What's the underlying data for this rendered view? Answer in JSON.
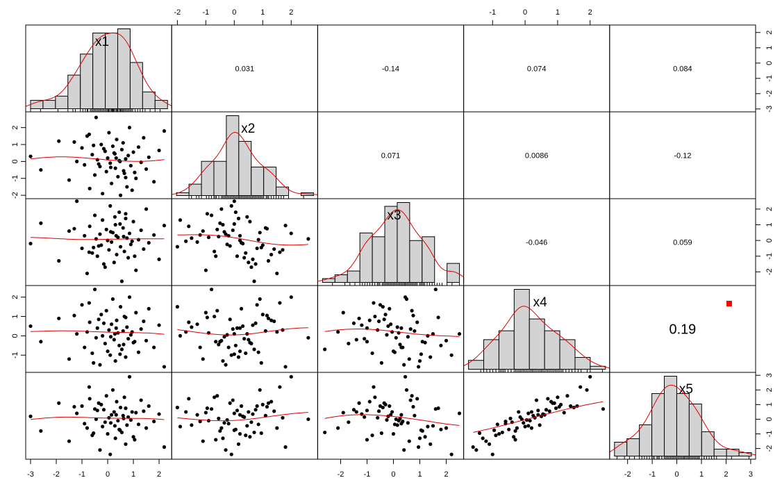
{
  "chart_data": {
    "type": "scatter-matrix",
    "title": "",
    "variables": [
      "x1",
      "x2",
      "x3",
      "x4",
      "x5"
    ],
    "axis_ranges": {
      "x1": [
        -3.19,
        2.49
      ],
      "x2": [
        -2.2,
        2.93
      ],
      "x3": [
        -2.87,
        2.66
      ],
      "x4": [
        -1.89,
        2.6
      ],
      "x5": [
        -2.73,
        3.2
      ]
    },
    "axis_ticks": {
      "x1": [
        "-3",
        "-2",
        "-1",
        "0",
        "1",
        "2"
      ],
      "x2": [
        "-2",
        "-1",
        "0",
        "1",
        "2"
      ],
      "x3": [
        "-2",
        "-1",
        "0",
        "1",
        "2"
      ],
      "x4": [
        "-1",
        "0",
        "1",
        "2"
      ],
      "x5": [
        "-2",
        "-1",
        "0",
        "1",
        "2",
        "3"
      ]
    },
    "histograms": {
      "x1": {
        "breaks_start": -3,
        "bin_width": 0.5,
        "counts": [
          2,
          2,
          3,
          8,
          13,
          18,
          18,
          19,
          11,
          4,
          2
        ]
      },
      "x2": {
        "breaks_start": -2.5,
        "bin_width": 0.5,
        "counts": [
          1,
          4,
          12,
          12,
          28,
          19,
          10,
          10,
          3,
          0,
          1
        ]
      },
      "x3": {
        "breaks_start": -3,
        "bin_width": 0.5,
        "counts": [
          1,
          2,
          3,
          13,
          12,
          20,
          21,
          11,
          12,
          0,
          5
        ]
      },
      "x4": {
        "breaks_start": -2,
        "bin_width": 0.5,
        "counts": [
          3,
          10,
          13,
          27,
          17,
          13,
          10,
          4,
          1
        ]
      },
      "x5": {
        "breaks_start": -2.5,
        "bin_width": 0.5,
        "counts": [
          4,
          5,
          9,
          18,
          23,
          18,
          15,
          7,
          2,
          2,
          1
        ]
      }
    },
    "correlations": [
      {
        "row": 1,
        "col": 2,
        "text": "0.031",
        "r": 0.031,
        "stars": ""
      },
      {
        "row": 1,
        "col": 3,
        "text": "-0.14",
        "r": -0.14,
        "stars": ""
      },
      {
        "row": 1,
        "col": 4,
        "text": "0.074",
        "r": 0.074,
        "stars": ""
      },
      {
        "row": 1,
        "col": 5,
        "text": "0.084",
        "r": 0.084,
        "stars": ""
      },
      {
        "row": 2,
        "col": 3,
        "text": "0.071",
        "r": 0.071,
        "stars": ""
      },
      {
        "row": 2,
        "col": 4,
        "text": "0.0086",
        "r": 0.0086,
        "stars": ""
      },
      {
        "row": 2,
        "col": 5,
        "text": "-0.12",
        "r": -0.12,
        "stars": ""
      },
      {
        "row": 3,
        "col": 4,
        "text": "-0.046",
        "r": -0.046,
        "stars": ""
      },
      {
        "row": 3,
        "col": 5,
        "text": "0.059",
        "r": 0.059,
        "stars": ""
      },
      {
        "row": 4,
        "col": 5,
        "text": "0.19",
        "r": 0.19,
        "stars": "."
      }
    ],
    "values": {
      "x1": [
        -3.0,
        -2.6,
        -1.9,
        -1.5,
        -1.2,
        -1.0,
        -0.9,
        -0.8,
        -0.7,
        -0.6,
        -0.5,
        -0.45,
        -0.4,
        -0.3,
        -0.25,
        -0.2,
        -0.1,
        -0.05,
        0.0,
        0.05,
        0.1,
        0.15,
        0.2,
        0.25,
        0.3,
        0.35,
        0.4,
        0.45,
        0.5,
        0.55,
        0.6,
        0.65,
        0.7,
        0.75,
        0.8,
        0.85,
        0.9,
        1.0,
        1.1,
        1.2,
        1.3,
        1.4,
        1.5,
        1.6,
        1.8,
        2.0,
        2.2,
        -0.35,
        0.28,
        0.62,
        -0.72,
        0.12,
        -0.15,
        0.48,
        0.95,
        -1.3,
        1.05,
        0.33,
        -0.55,
        0.7
      ],
      "x2": [
        0.3,
        -0.5,
        1.2,
        -1.1,
        0.0,
        0.8,
        -0.2,
        1.5,
        -1.6,
        0.4,
        -0.8,
        2.6,
        0.1,
        -0.3,
        1.0,
        -1.9,
        0.6,
        -0.6,
        0.2,
        1.7,
        -0.1,
        -1.3,
        0.9,
        0.5,
        -0.4,
        1.3,
        -0.9,
        0.05,
        -2.0,
        0.7,
        1.1,
        -0.7,
        0.15,
        -1.5,
        0.35,
        2.0,
        -0.25,
        0.55,
        -1.0,
        0.85,
        -0.05,
        1.4,
        -0.45,
        0.25,
        -1.2,
        0.65,
        1.8,
        -0.15,
        0.45,
        -0.55,
        1.6,
        -0.35,
        0.75,
        0.0,
        -1.7,
        1.15,
        -0.65,
        0.2,
        0.95,
        -0.95
      ],
      "x3": [
        -0.2,
        1.1,
        -1.3,
        0.6,
        2.5,
        -0.5,
        0.3,
        -2.1,
        0.9,
        -0.8,
        1.6,
        0.1,
        -1.0,
        0.4,
        -0.3,
        1.3,
        -1.7,
        0.7,
        0.0,
        -0.6,
        2.2,
        -0.1,
        0.5,
        -1.4,
        1.0,
        -0.9,
        0.2,
        1.8,
        -0.4,
        -2.6,
        0.8,
        -0.7,
        1.4,
        0.15,
        -1.1,
        0.45,
        -0.25,
        1.2,
        -1.9,
        0.05,
        0.65,
        -0.55,
        2.0,
        -0.15,
        0.35,
        -1.2,
        0.95,
        -0.35,
        1.5,
        0.25,
        -0.75,
        0.55,
        -1.5,
        1.05,
        -0.05,
        0.75,
        -1.0,
        0.3,
        -0.45,
        1.7
      ],
      "x4": [
        0.5,
        -0.3,
        0.9,
        -1.2,
        0.1,
        1.6,
        -0.6,
        0.2,
        0.7,
        -0.9,
        2.4,
        -0.1,
        0.4,
        -1.5,
        1.1,
        0.0,
        -0.4,
        1.3,
        -0.8,
        0.3,
        -1.0,
        0.6,
        1.9,
        -0.2,
        -1.3,
        0.8,
        0.15,
        -0.5,
        1.5,
        -0.7,
        0.25,
        1.0,
        -1.1,
        0.45,
        -0.15,
        2.0,
        0.05,
        -0.35,
        1.2,
        -0.85,
        0.35,
        0.75,
        -0.25,
        1.4,
        -0.6,
        0.55,
        -1.6,
        0.85,
        0.1,
        -0.45,
        1.7,
        -0.05,
        0.65,
        -0.95,
        0.2,
        1.05,
        -0.3,
        0.4,
        -1.4,
        0.95
      ],
      "x5": [
        0.2,
        -0.8,
        1.1,
        -1.5,
        0.4,
        0.9,
        -0.3,
        -0.6,
        1.4,
        -1.1,
        0.7,
        0.0,
        0.6,
        -2.1,
        1.0,
        -0.5,
        -0.2,
        1.6,
        -1.0,
        0.1,
        -2.4,
        0.3,
        2.0,
        0.5,
        -1.3,
        1.2,
        -0.1,
        -0.7,
        0.8,
        -0.9,
        0.25,
        1.5,
        -1.7,
        -0.4,
        0.15,
        2.9,
        -0.05,
        -1.2,
        0.45,
        -0.35,
        1.3,
        0.55,
        -0.6,
        0.9,
        -0.15,
        0.35,
        -1.9,
        1.1,
        -0.45,
        0.05,
        2.2,
        -0.25,
        0.65,
        -0.75,
        0.5,
        0.85,
        -1.4,
        0.3,
        -0.95,
        0.75
      ]
    },
    "colors": {
      "bar_fill": "#d3d3d3",
      "smooth_line": "#e00000",
      "density_line": "#e00000",
      "star": "#ff0000",
      "points": "#000000"
    }
  }
}
